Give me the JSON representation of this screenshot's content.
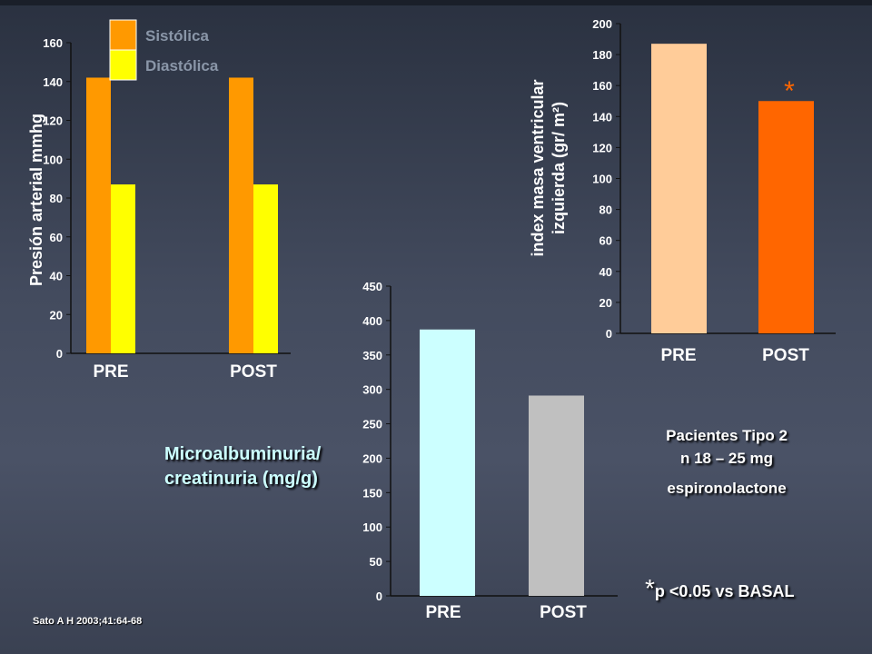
{
  "chart_data": [
    {
      "type": "bar",
      "ylabel": "Presión arterial mmhg",
      "ylim": [
        0,
        160
      ],
      "yticks": [
        0,
        20,
        40,
        60,
        80,
        100,
        120,
        140,
        160
      ],
      "categories": [
        "PRE",
        "POST"
      ],
      "series": [
        {
          "name": "Sistólica",
          "color": "#ff9900",
          "values": [
            142,
            142
          ]
        },
        {
          "name": "Diastólica",
          "color": "#ffff00",
          "values": [
            87,
            87
          ]
        }
      ],
      "legend": "top-right"
    },
    {
      "type": "bar",
      "ylabel": "index masa ventricular izquierda (gr/ m²)",
      "ylabel_line1": "index masa ventricular",
      "ylabel_line2": "izquierda (gr/ m²)",
      "ylim": [
        0,
        200
      ],
      "yticks": [
        0,
        20,
        40,
        60,
        80,
        100,
        120,
        140,
        160,
        180,
        200
      ],
      "categories": [
        "PRE",
        "POST"
      ],
      "values": [
        187,
        150
      ],
      "colors": [
        "#ffcc99",
        "#ff6600"
      ],
      "annotation": "*"
    },
    {
      "type": "bar",
      "ylabel": "Microalbuminuria/ creatinuria (mg/g)",
      "ylim": [
        0,
        450
      ],
      "yticks": [
        0,
        50,
        100,
        150,
        200,
        250,
        300,
        350,
        400,
        450
      ],
      "categories": [
        "PRE",
        "POST"
      ],
      "values": [
        387,
        291
      ],
      "colors": [
        "#ccffff",
        "#c0c0c0"
      ]
    }
  ],
  "text": {
    "micro_line1": "Microalbuminuria/",
    "micro_line2": "creatinuria (mg/g)",
    "patients_line1": "Pacientes Tipo 2",
    "patients_line2": "n 18 – 25 mg",
    "patients_line3": "espironolactone",
    "sig_star": "*",
    "sig_text": "p <0.05 vs BASAL",
    "reference": "Sato A H 2003;41:64-68"
  }
}
